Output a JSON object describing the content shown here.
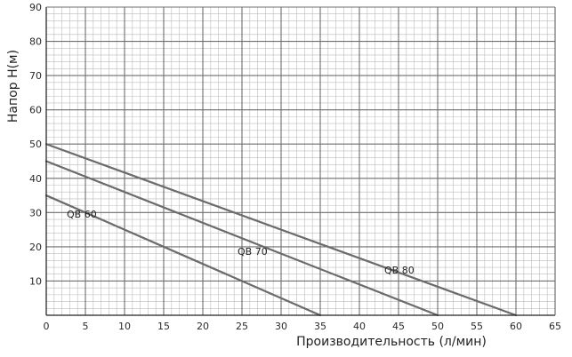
{
  "chart_data": {
    "type": "line",
    "title": "",
    "xlabel": "Производительность (л/мин)",
    "ylabel": "Напор H(м)",
    "xlim": [
      0,
      65
    ],
    "ylim": [
      0,
      90
    ],
    "x_ticks": [
      0,
      5,
      10,
      15,
      20,
      25,
      30,
      35,
      40,
      45,
      50,
      55,
      60,
      65
    ],
    "y_ticks": [
      10,
      20,
      30,
      40,
      50,
      60,
      70,
      80,
      90
    ],
    "x_tick_labels": [
      "0",
      "5",
      "10",
      "15",
      "20",
      "25",
      "30",
      "35",
      "40",
      "45",
      "50",
      "55",
      "60",
      "65"
    ],
    "y_tick_labels": [
      "10",
      "20",
      "30",
      "40",
      "50",
      "60",
      "70",
      "80",
      "90"
    ],
    "grid": {
      "major": true,
      "minor": true,
      "x_minor_step": 1,
      "y_minor_step": 2
    },
    "legend": "none",
    "series": [
      {
        "name": "QB 60",
        "x": [
          0,
          35
        ],
        "y": [
          35,
          0
        ]
      },
      {
        "name": "QB 70",
        "x": [
          0,
          50
        ],
        "y": [
          45,
          0
        ]
      },
      {
        "name": "QB 80",
        "x": [
          0,
          60
        ],
        "y": [
          50,
          0
        ]
      }
    ],
    "colors": {
      "background": "#ffffff",
      "axis": "#222222",
      "major_grid": "#6f6f6f",
      "minor_grid": "#bcbcbc",
      "series_line": "#6b6b6b"
    }
  }
}
